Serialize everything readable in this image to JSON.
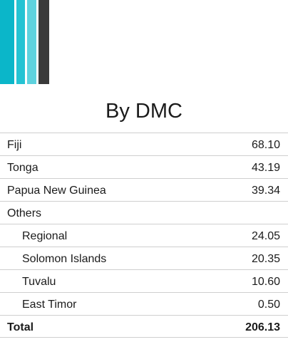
{
  "logo": {
    "colors": [
      "#0bb6c9",
      "#25c3d3",
      "#5ed2de",
      "#3a3a3a"
    ]
  },
  "title": "By DMC",
  "rows": [
    {
      "label": "Fiji",
      "value": "68.10"
    },
    {
      "label": "Tonga",
      "value": "43.19"
    },
    {
      "label": "Papua New Guinea",
      "value": "39.34"
    },
    {
      "label": "Others",
      "value": ""
    },
    {
      "label": "Regional",
      "value": "24.05"
    },
    {
      "label": "Solomon Islands",
      "value": "20.35"
    },
    {
      "label": "Tuvalu",
      "value": "10.60"
    },
    {
      "label": "East Timor",
      "value": "0.50"
    }
  ],
  "total": {
    "label": "Total",
    "value": "206.13"
  }
}
